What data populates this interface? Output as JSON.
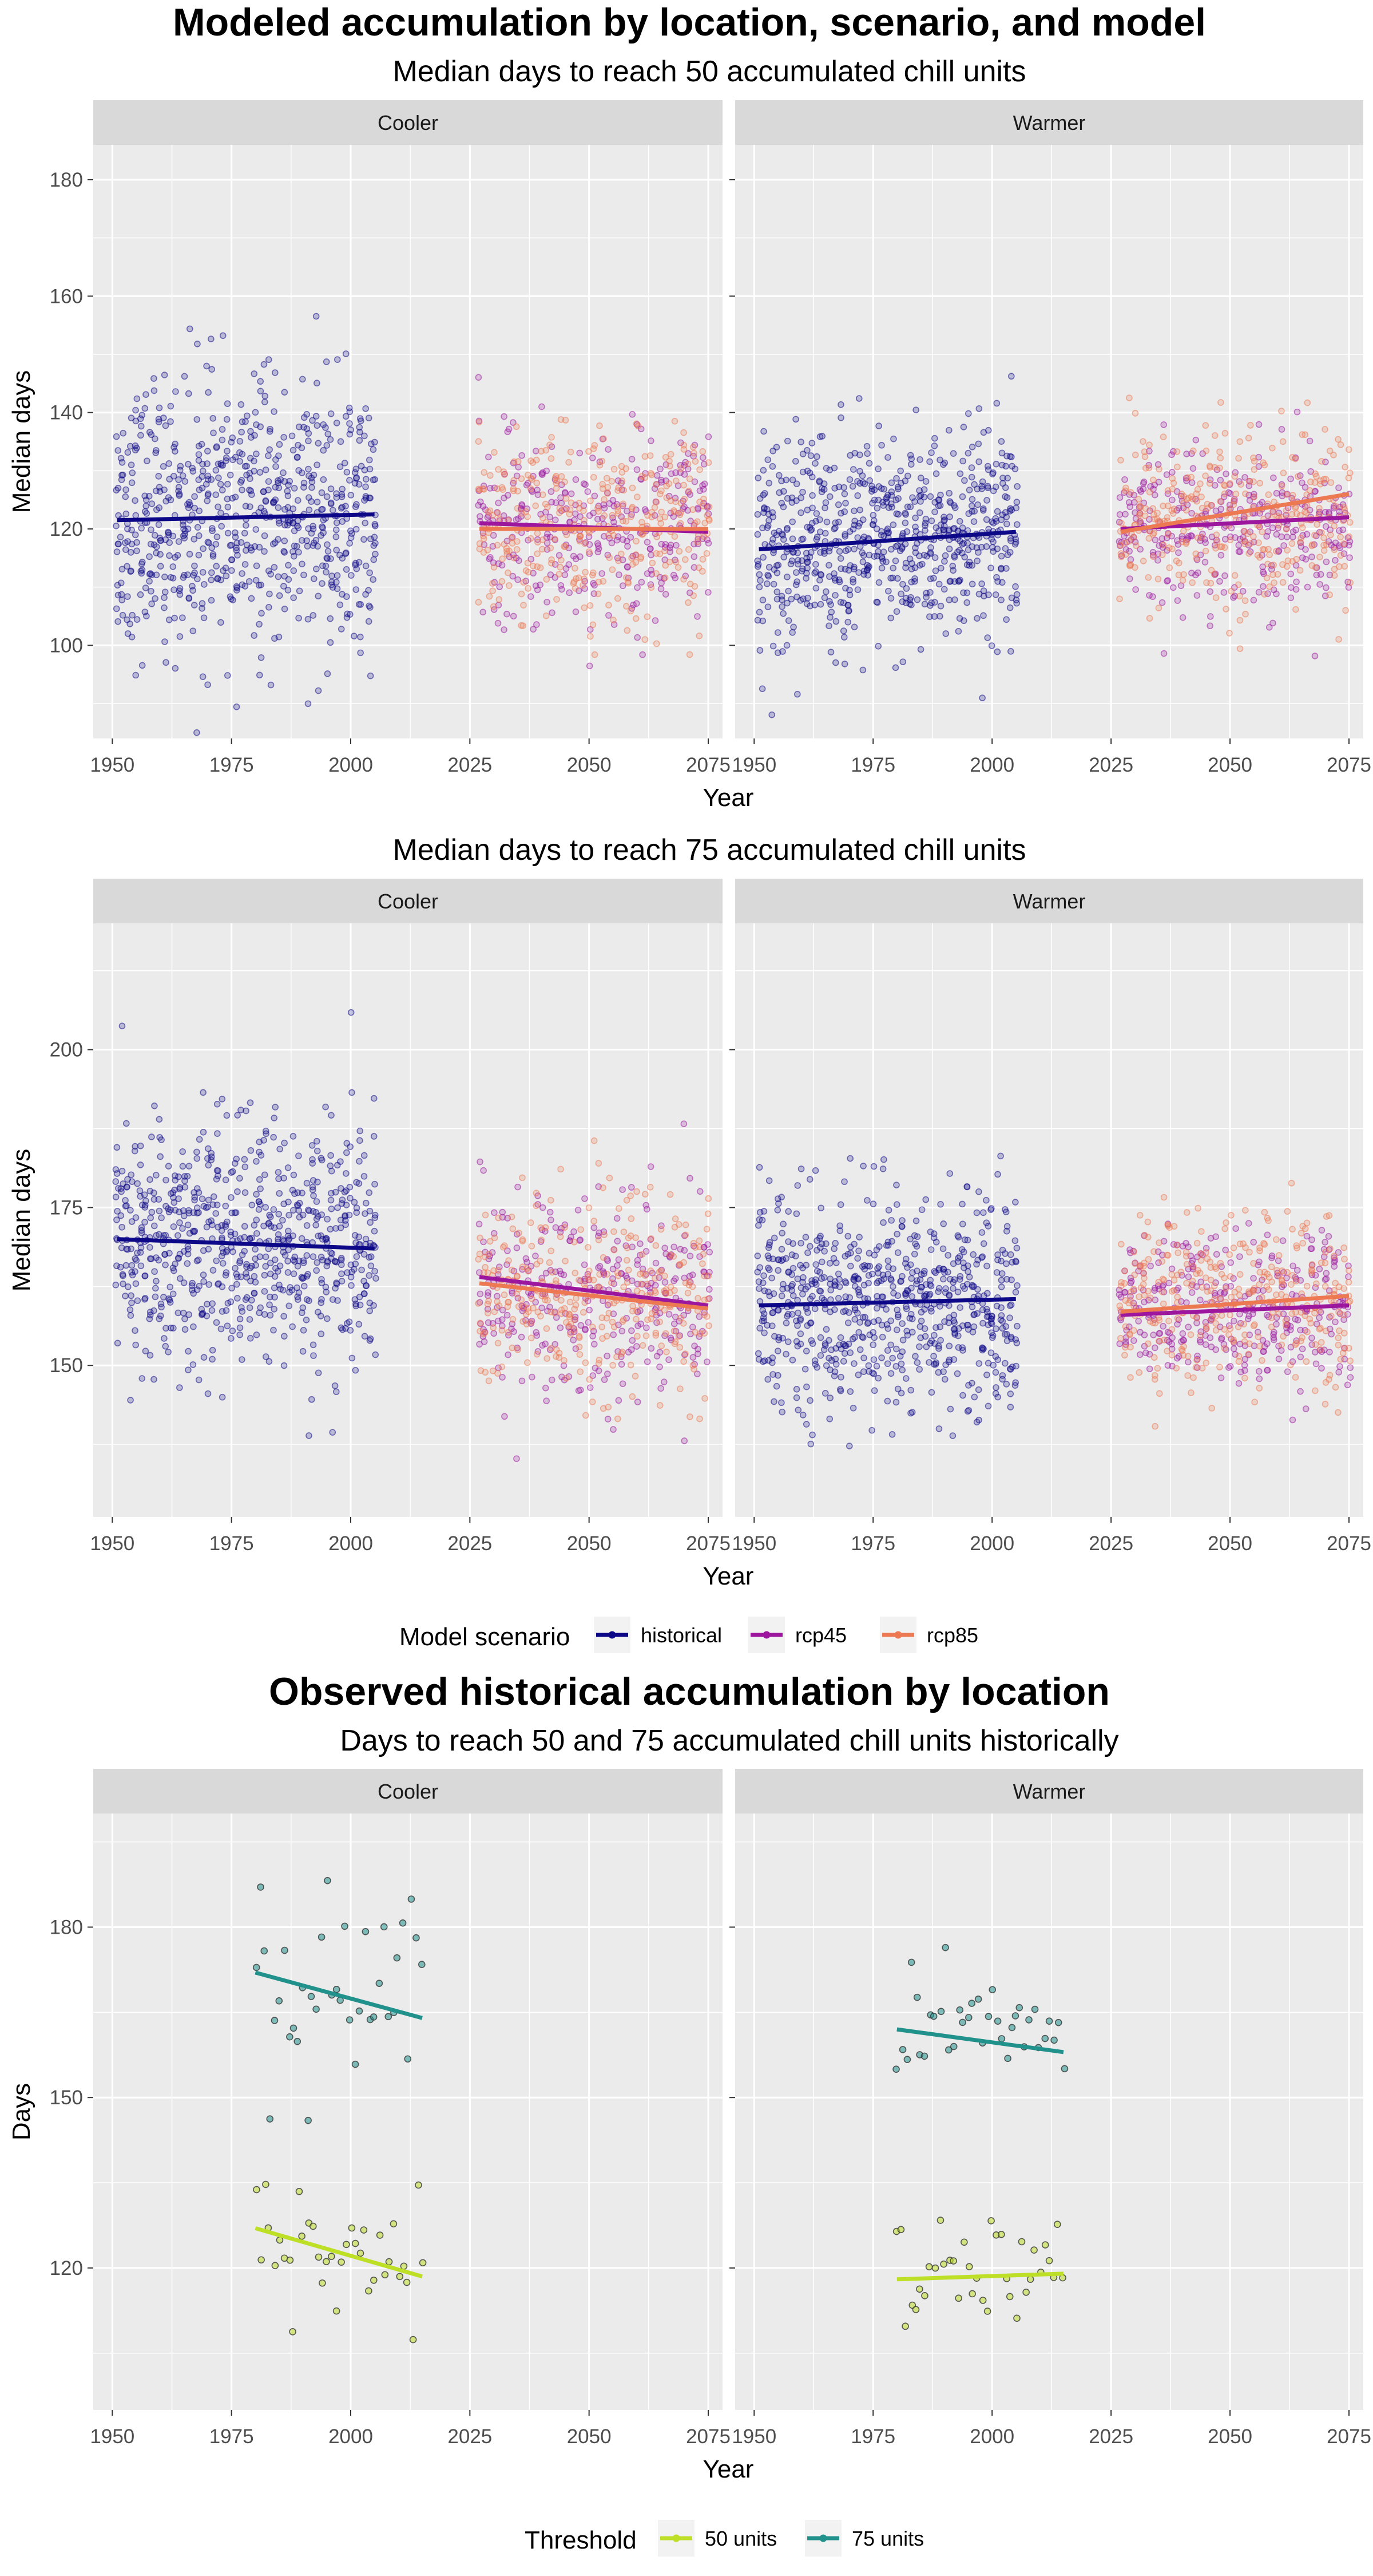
{
  "titles": {
    "modeled_title": "Modeled accumulation by location, scenario, and model",
    "observed_title": "Observed historical accumulation by location"
  },
  "legends": {
    "scenario_title": "Model scenario",
    "scenario_items": [
      {
        "label": "historical",
        "color": "#0d0887"
      },
      {
        "label": "rcp45",
        "color": "#9c179e"
      },
      {
        "label": "rcp85",
        "color": "#ed7953"
      }
    ],
    "threshold_title": "Threshold",
    "threshold_items": [
      {
        "label": "50 units",
        "color": "#bddf26"
      },
      {
        "label": "75 units",
        "color": "#21918c"
      }
    ]
  },
  "chart_data": [
    {
      "type": "scatter",
      "title": "Median days to reach 50 accumulated chill units",
      "xlabel": "Year",
      "ylabel": "Median days",
      "xlim": [
        1946,
        2078
      ],
      "ylim": [
        84,
        186
      ],
      "xticks": [
        1950,
        1975,
        2000,
        2025,
        2050,
        2075
      ],
      "yticks": [
        100,
        120,
        140,
        160,
        180
      ],
      "grid": true,
      "legend_position": "bottom",
      "panels": [
        {
          "name": "Cooler",
          "series": [
            {
              "name": "historical",
              "x_range": [
                1951,
                2005
              ],
              "y_center": 122,
              "y_spread": 15,
              "trend": [
                [
                  1951,
                  121.5
                ],
                [
                  2005,
                  122.5
                ]
              ]
            },
            {
              "name": "rcp45",
              "x_range": [
                2027,
                2075
              ],
              "y_center": 120,
              "y_spread": 11,
              "trend": [
                [
                  2027,
                  121
                ],
                [
                  2075,
                  119.5
                ]
              ]
            },
            {
              "name": "rcp85",
              "x_range": [
                2027,
                2075
              ],
              "y_center": 120,
              "y_spread": 11,
              "trend": [
                [
                  2027,
                  120
                ],
                [
                  2075,
                  120
                ]
              ]
            }
          ]
        },
        {
          "name": "Warmer",
          "series": [
            {
              "name": "historical",
              "x_range": [
                1951,
                2005
              ],
              "y_center": 118,
              "y_spread": 12,
              "trend": [
                [
                  1951,
                  116.5
                ],
                [
                  2005,
                  119.5
                ]
              ]
            },
            {
              "name": "rcp45",
              "x_range": [
                2027,
                2075
              ],
              "y_center": 121,
              "y_spread": 9,
              "trend": [
                [
                  2027,
                  120
                ],
                [
                  2075,
                  122
                ]
              ]
            },
            {
              "name": "rcp85",
              "x_range": [
                2027,
                2075
              ],
              "y_center": 122,
              "y_spread": 10,
              "trend": [
                [
                  2027,
                  119.5
                ],
                [
                  2075,
                  126
                ]
              ]
            }
          ]
        }
      ]
    },
    {
      "type": "scatter",
      "title": "Median days to reach 75 accumulated chill units",
      "xlabel": "Year",
      "ylabel": "Median days",
      "xlim": [
        1946,
        2078
      ],
      "ylim": [
        126,
        220
      ],
      "xticks": [
        1950,
        1975,
        2000,
        2025,
        2050,
        2075
      ],
      "yticks": [
        150,
        175,
        200
      ],
      "grid": true,
      "legend_position": "bottom",
      "panels": [
        {
          "name": "Cooler",
          "series": [
            {
              "name": "historical",
              "x_range": [
                1951,
                2005
              ],
              "y_center": 169,
              "y_spread": 13,
              "trend": [
                [
                  1951,
                  170
                ],
                [
                  2005,
                  168.5
                ]
              ]
            },
            {
              "name": "rcp45",
              "x_range": [
                2027,
                2075
              ],
              "y_center": 161,
              "y_spread": 11,
              "trend": [
                [
                  2027,
                  164
                ],
                [
                  2075,
                  159.5
                ]
              ]
            },
            {
              "name": "rcp85",
              "x_range": [
                2027,
                2075
              ],
              "y_center": 161,
              "y_spread": 11,
              "trend": [
                [
                  2027,
                  163
                ],
                [
                  2075,
                  159
                ]
              ]
            }
          ]
        },
        {
          "name": "Warmer",
          "series": [
            {
              "name": "historical",
              "x_range": [
                1951,
                2005
              ],
              "y_center": 160,
              "y_spread": 11,
              "trend": [
                [
                  1951,
                  159.5
                ],
                [
                  2005,
                  160.5
                ]
              ]
            },
            {
              "name": "rcp45",
              "x_range": [
                2027,
                2075
              ],
              "y_center": 159,
              "y_spread": 8,
              "trend": [
                [
                  2027,
                  158
                ],
                [
                  2075,
                  159.5
                ]
              ]
            },
            {
              "name": "rcp85",
              "x_range": [
                2027,
                2075
              ],
              "y_center": 160,
              "y_spread": 9,
              "trend": [
                [
                  2027,
                  158.5
                ],
                [
                  2075,
                  161
                ]
              ]
            }
          ]
        }
      ]
    },
    {
      "type": "scatter",
      "title": "Days to reach 50 and 75 accumulated chill units historically",
      "xlabel": "Year",
      "ylabel": "Days",
      "xlim": [
        1946,
        2078
      ],
      "ylim": [
        95,
        200
      ],
      "xticks": [
        1950,
        1975,
        2000,
        2025,
        2050,
        2075
      ],
      "yticks": [
        120,
        150,
        180
      ],
      "grid": true,
      "legend_position": "bottom",
      "panels": [
        {
          "name": "Cooler",
          "series": [
            {
              "name": "50 units",
              "x_range": [
                1980,
                2015
              ],
              "y_center": 122,
              "y_spread": 9,
              "trend": [
                [
                  1980,
                  127
                ],
                [
                  2015,
                  118.5
                ]
              ]
            },
            {
              "name": "75 units",
              "x_range": [
                1980,
                2015
              ],
              "y_center": 168,
              "y_spread": 12,
              "trend": [
                [
                  1980,
                  172
                ],
                [
                  2015,
                  164
                ]
              ]
            }
          ]
        },
        {
          "name": "Warmer",
          "series": [
            {
              "name": "50 units",
              "x_range": [
                1980,
                2015
              ],
              "y_center": 120,
              "y_spread": 7,
              "trend": [
                [
                  1980,
                  118
                ],
                [
                  2015,
                  119
                ]
              ]
            },
            {
              "name": "75 units",
              "x_range": [
                1980,
                2015
              ],
              "y_center": 162,
              "y_spread": 8,
              "trend": [
                [
                  1980,
                  162
                ],
                [
                  2015,
                  158
                ]
              ]
            }
          ]
        }
      ]
    }
  ]
}
